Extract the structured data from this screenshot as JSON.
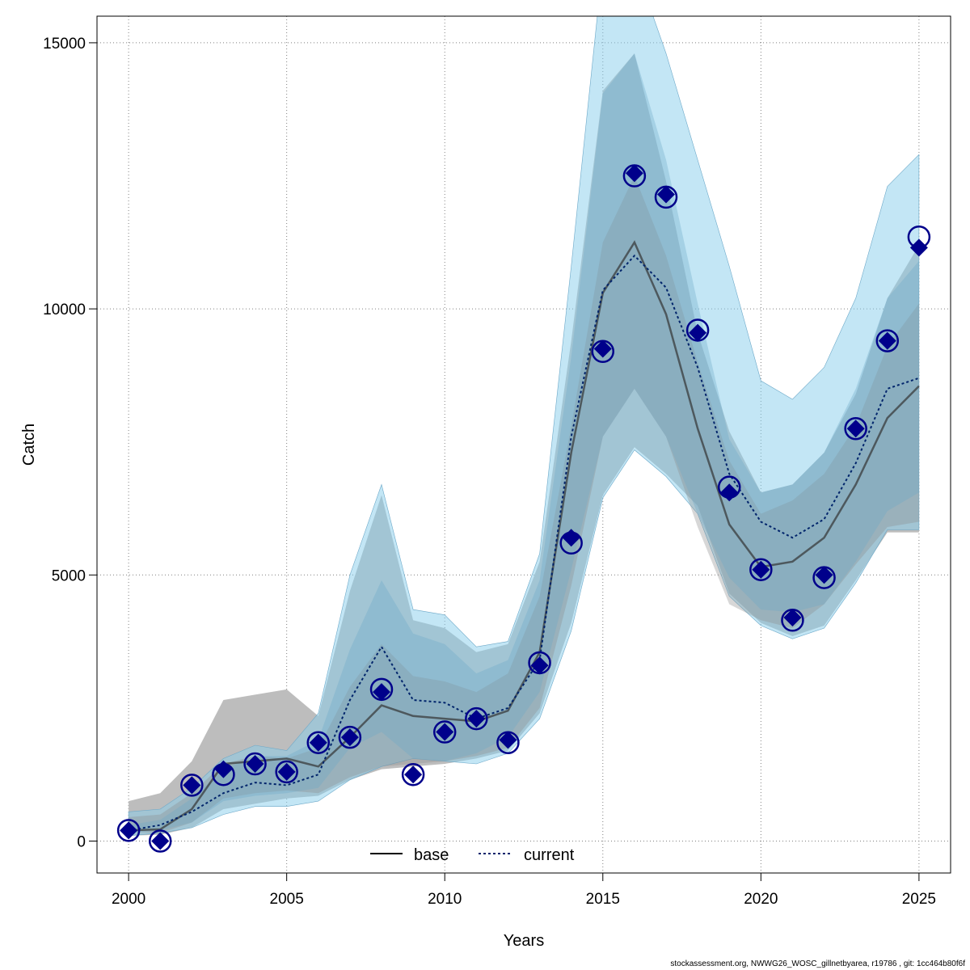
{
  "chart_data": {
    "type": "line",
    "xlabel": "Years",
    "ylabel": "Catch",
    "xlim": [
      1999,
      2026
    ],
    "ylim": [
      -600,
      15500
    ],
    "x_ticks": [
      2000,
      2005,
      2010,
      2015,
      2020,
      2025
    ],
    "y_ticks": [
      0,
      5000,
      10000,
      15000
    ],
    "grid": true,
    "x": [
      2000,
      2001,
      2002,
      2003,
      2004,
      2005,
      2006,
      2007,
      2008,
      2009,
      2010,
      2011,
      2012,
      2013,
      2014,
      2015,
      2016,
      2017,
      2018,
      2019,
      2020,
      2021,
      2022,
      2023,
      2024,
      2025
    ],
    "series": [
      {
        "name": "base",
        "style": "solid",
        "color": "#000000",
        "band_color": "#bdbdbd",
        "median": [
          200,
          220,
          600,
          1450,
          1500,
          1550,
          1400,
          1950,
          2550,
          2350,
          2300,
          2250,
          2450,
          3550,
          7300,
          10300,
          11250,
          9900,
          7750,
          5950,
          5150,
          5250,
          5700,
          6700,
          7950,
          8550
        ],
        "lower_50": [
          180,
          150,
          350,
          800,
          900,
          950,
          900,
          1200,
          1400,
          1450,
          1500,
          1600,
          1750,
          2500,
          4800,
          7600,
          8500,
          7600,
          5900,
          4450,
          4150,
          4000,
          4450,
          5200,
          5900,
          6000
        ],
        "upper_50": [
          450,
          500,
          900,
          1450,
          1600,
          1550,
          1750,
          2900,
          3700,
          3100,
          3000,
          2800,
          3150,
          4600,
          7800,
          11250,
          12500,
          11000,
          9000,
          7150,
          6150,
          6400,
          6900,
          7800,
          9300,
          10100
        ],
        "lower_95": [
          100,
          120,
          250,
          600,
          700,
          800,
          850,
          1150,
          1350,
          1400,
          1450,
          1550,
          1700,
          2400,
          4100,
          6500,
          7400,
          6900,
          6300,
          4650,
          4100,
          3850,
          4050,
          4900,
          5800,
          5800
        ],
        "upper_95": [
          750,
          900,
          1500,
          2650,
          2750,
          2850,
          2350,
          4700,
          6500,
          4150,
          4000,
          3550,
          3700,
          5250,
          9400,
          14100,
          14800,
          12400,
          9550,
          7700,
          6550,
          6700,
          7300,
          8400,
          10200,
          11200
        ]
      },
      {
        "name": "current",
        "style": "dotted",
        "color": "#00246b",
        "band_color": "#87ceeb",
        "median": [
          200,
          300,
          550,
          900,
          1100,
          1050,
          1250,
          2650,
          3650,
          2650,
          2600,
          2300,
          2500,
          3400,
          7600,
          10350,
          11000,
          10400,
          8900,
          6900,
          6000,
          5700,
          6050,
          7100,
          8500,
          8700
        ],
        "lower_50": [
          150,
          200,
          350,
          750,
          850,
          900,
          1000,
          1750,
          2050,
          1550,
          1500,
          1650,
          1950,
          2800,
          5100,
          7600,
          8500,
          7600,
          6150,
          4950,
          4350,
          4300,
          4450,
          5250,
          6200,
          6550
        ],
        "upper_50": [
          300,
          400,
          800,
          1350,
          1600,
          1600,
          1900,
          3600,
          4900,
          3900,
          3700,
          3150,
          3400,
          4900,
          9100,
          14050,
          14800,
          12800,
          10100,
          7550,
          6550,
          6700,
          7300,
          8500,
          10200,
          10900
        ],
        "lower_95": [
          100,
          150,
          250,
          500,
          650,
          650,
          750,
          1150,
          1400,
          1550,
          1500,
          1450,
          1650,
          2300,
          3950,
          6450,
          7350,
          6850,
          6150,
          4600,
          4050,
          3800,
          4000,
          4850,
          5850,
          5850
        ],
        "upper_95": [
          550,
          600,
          1000,
          1550,
          1800,
          1700,
          2400,
          5000,
          6700,
          4350,
          4250,
          3650,
          3750,
          5400,
          10800,
          16500,
          16500,
          14800,
          12800,
          10800,
          8650,
          8300,
          8900,
          10200,
          12300,
          12900
        ]
      }
    ],
    "observations": {
      "base": [
        200,
        0,
        1050,
        1350,
        1450,
        1300,
        1850,
        1950,
        2800,
        1250,
        2050,
        2300,
        1900,
        3300,
        5700,
        9250,
        12550,
        12150,
        9550,
        6550,
        5100,
        4200,
        5000,
        7750,
        9400,
        11150
      ],
      "current": [
        200,
        0,
        1050,
        1250,
        1450,
        1300,
        1850,
        1950,
        2850,
        1250,
        2050,
        2300,
        1850,
        3350,
        5600,
        9200,
        12500,
        12100,
        9600,
        6650,
        5100,
        4150,
        4950,
        7750,
        9400,
        11350
      ]
    },
    "legend": [
      "base",
      "current"
    ],
    "legend_position": "bottom-center"
  },
  "footer_text": "stockassessment.org, NWWG26_WOSC_gillnetbyarea, r19786 , git: 1cc464b80f6f"
}
